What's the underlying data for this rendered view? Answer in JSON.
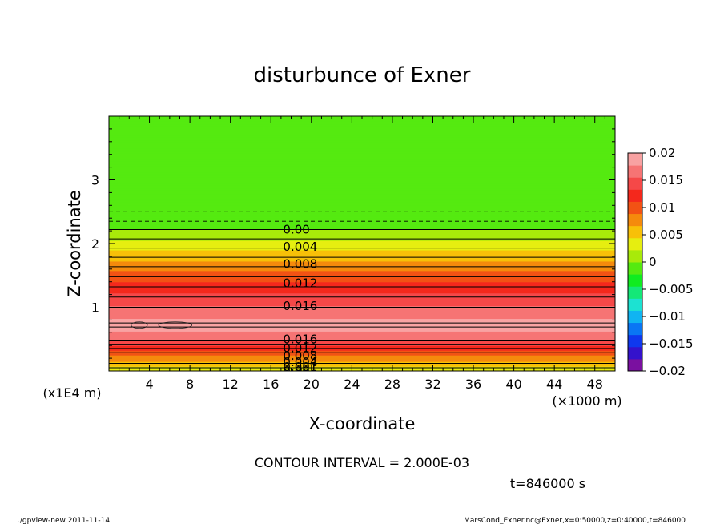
{
  "chart_data": {
    "type": "contour",
    "title": "disturbunce of Exner",
    "xlabel": "X-coordinate",
    "ylabel": "Z-coordinate",
    "x_unit": "(×1000 m)",
    "y_unit": "(x1E4 m)",
    "xlim": [
      0,
      50
    ],
    "ylim": [
      0,
      4
    ],
    "x_ticks": [
      4,
      8,
      12,
      16,
      20,
      24,
      28,
      32,
      36,
      40,
      44,
      48
    ],
    "y_ticks": [
      1,
      2,
      3
    ],
    "contour_interval_text": "CONTOUR INTERVAL = 2.000E-03",
    "time_text": "t=846000 s",
    "colorbar": {
      "range": [
        -0.02,
        0.02
      ],
      "tick_values": [
        0.02,
        0.015,
        0.01,
        0.005,
        0,
        -0.005,
        -0.01,
        -0.015,
        -0.02
      ],
      "tick_labels": [
        "0.02",
        "0.015",
        "0.01",
        "0.005",
        "0",
        "−0.005",
        "−0.01",
        "−0.015",
        "−0.02"
      ],
      "colors": [
        "#7a10a0",
        "#3412cc",
        "#0f38ee",
        "#0a76f4",
        "#10b4f2",
        "#1ce2d2",
        "#14e878",
        "#10ec20",
        "#55ea10",
        "#a8ea0a",
        "#e6ee10",
        "#f8c008",
        "#f58a0c",
        "#f25214",
        "#f4281c",
        "#f54848",
        "#f67474",
        "#f8a2a2"
      ]
    },
    "profile": [
      {
        "z": 0.0,
        "value": 0.004
      },
      {
        "z": 0.05,
        "value": 0.004
      },
      {
        "z": 0.12,
        "value": 0.006
      },
      {
        "z": 0.22,
        "value": 0.008
      },
      {
        "z": 0.32,
        "value": 0.011
      },
      {
        "z": 0.42,
        "value": 0.014
      },
      {
        "z": 0.5,
        "value": 0.0165
      },
      {
        "z": 0.6,
        "value": 0.0177
      },
      {
        "z": 0.72,
        "value": 0.0181
      },
      {
        "z": 0.85,
        "value": 0.0177
      },
      {
        "z": 1.0,
        "value": 0.016
      },
      {
        "z": 1.2,
        "value": 0.0135
      },
      {
        "z": 1.4,
        "value": 0.011
      },
      {
        "z": 1.6,
        "value": 0.0085
      },
      {
        "z": 1.8,
        "value": 0.0058
      },
      {
        "z": 2.0,
        "value": 0.003
      },
      {
        "z": 2.22,
        "value": 0.0
      },
      {
        "z": 2.35,
        "value": -0.0005
      },
      {
        "z": 2.5,
        "value": -0.0008
      },
      {
        "z": 3.0,
        "value": -0.0012
      },
      {
        "z": 4.0,
        "value": -0.0015
      }
    ],
    "contour_labels": [
      {
        "text": "0.00",
        "x": 17.2,
        "z": 2.22
      },
      {
        "text": "0.004",
        "x": 17.2,
        "z": 1.95
      },
      {
        "text": "0.008",
        "x": 17.2,
        "z": 1.68
      },
      {
        "text": "0.012",
        "x": 17.2,
        "z": 1.38
      },
      {
        "text": "0.016",
        "x": 17.2,
        "z": 1.02
      },
      {
        "text": "0.016",
        "x": 17.2,
        "z": 0.5
      },
      {
        "text": "0.012",
        "x": 17.2,
        "z": 0.36
      },
      {
        "text": "0.008",
        "x": 17.2,
        "z": 0.24
      },
      {
        "text": "0.004",
        "x": 17.2,
        "z": 0.14
      },
      {
        "text": "0.001",
        "x": 17.2,
        "z": 0.06
      },
      {
        "text": "0.00",
        "x": 17.2,
        "z": 0.0
      }
    ],
    "dashed_levels_z": [
      2.35,
      2.5
    ]
  },
  "footer": {
    "left": "./gpview-new  2011-11-14",
    "right": "MarsCond_Exner.nc@Exner,x=0:50000,z=0:40000,t=846000"
  }
}
